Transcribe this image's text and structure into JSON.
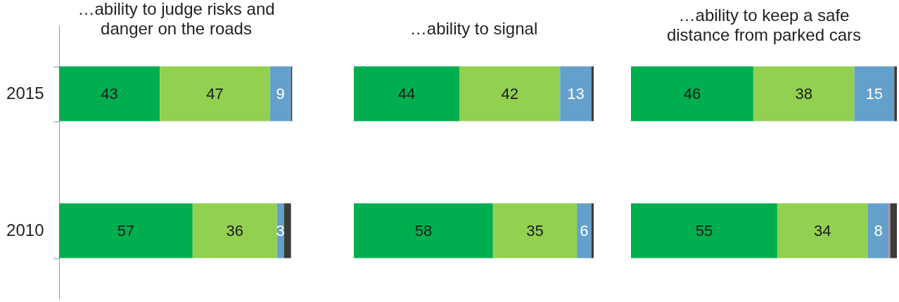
{
  "chart_data": [
    {
      "type": "bar",
      "orientation": "horizontal",
      "stacked": true,
      "title": "…ability to judge risks and danger on the roads",
      "categories": [
        "2015",
        "2010"
      ],
      "xlim": [
        0,
        100
      ],
      "tick_labels": "y",
      "series": [
        {
          "color": "#00ae4f",
          "values": [
            43,
            57
          ],
          "value_labels": [
            "43",
            "57"
          ]
        },
        {
          "color": "#92d050",
          "values": [
            47,
            36
          ],
          "value_labels": [
            "47",
            "36"
          ]
        },
        {
          "color": "#63a0cb",
          "values": [
            9,
            3
          ],
          "value_labels": [
            "9",
            "3"
          ]
        },
        {
          "color": "#3c3c37",
          "values": [
            0.5,
            3
          ]
        }
      ]
    },
    {
      "type": "bar",
      "orientation": "horizontal",
      "stacked": true,
      "title": "…ability to signal",
      "categories": [
        "2015",
        "2010"
      ],
      "xlim": [
        0,
        100
      ],
      "tick_labels": false,
      "series": [
        {
          "color": "#00ae4f",
          "values": [
            44,
            58
          ],
          "value_labels": [
            "44",
            "58"
          ]
        },
        {
          "color": "#92d050",
          "values": [
            42,
            35
          ],
          "value_labels": [
            "42",
            "35"
          ]
        },
        {
          "color": "#63a0cb",
          "values": [
            13,
            6
          ],
          "value_labels": [
            "13",
            "6"
          ]
        },
        {
          "color": "#3c3c37",
          "values": [
            1,
            1
          ]
        }
      ]
    },
    {
      "type": "bar",
      "orientation": "horizontal",
      "stacked": true,
      "title": "…ability to keep a safe distance from parked cars",
      "categories": [
        "2015",
        "2010"
      ],
      "xlim": [
        0,
        100
      ],
      "tick_labels": false,
      "series": [
        {
          "color": "#00ae4f",
          "values": [
            46,
            55
          ],
          "value_labels": [
            "46",
            "55"
          ]
        },
        {
          "color": "#92d050",
          "values": [
            38,
            34
          ],
          "value_labels": [
            "38",
            "34"
          ]
        },
        {
          "color": "#63a0cb",
          "values": [
            15,
            8
          ],
          "value_labels": [
            "15",
            "8"
          ]
        },
        {
          "color": "#f4675a",
          "values": [
            null,
            0.5
          ]
        },
        {
          "color": "#3c3c37",
          "values": [
            1,
            2.5
          ]
        }
      ]
    }
  ]
}
